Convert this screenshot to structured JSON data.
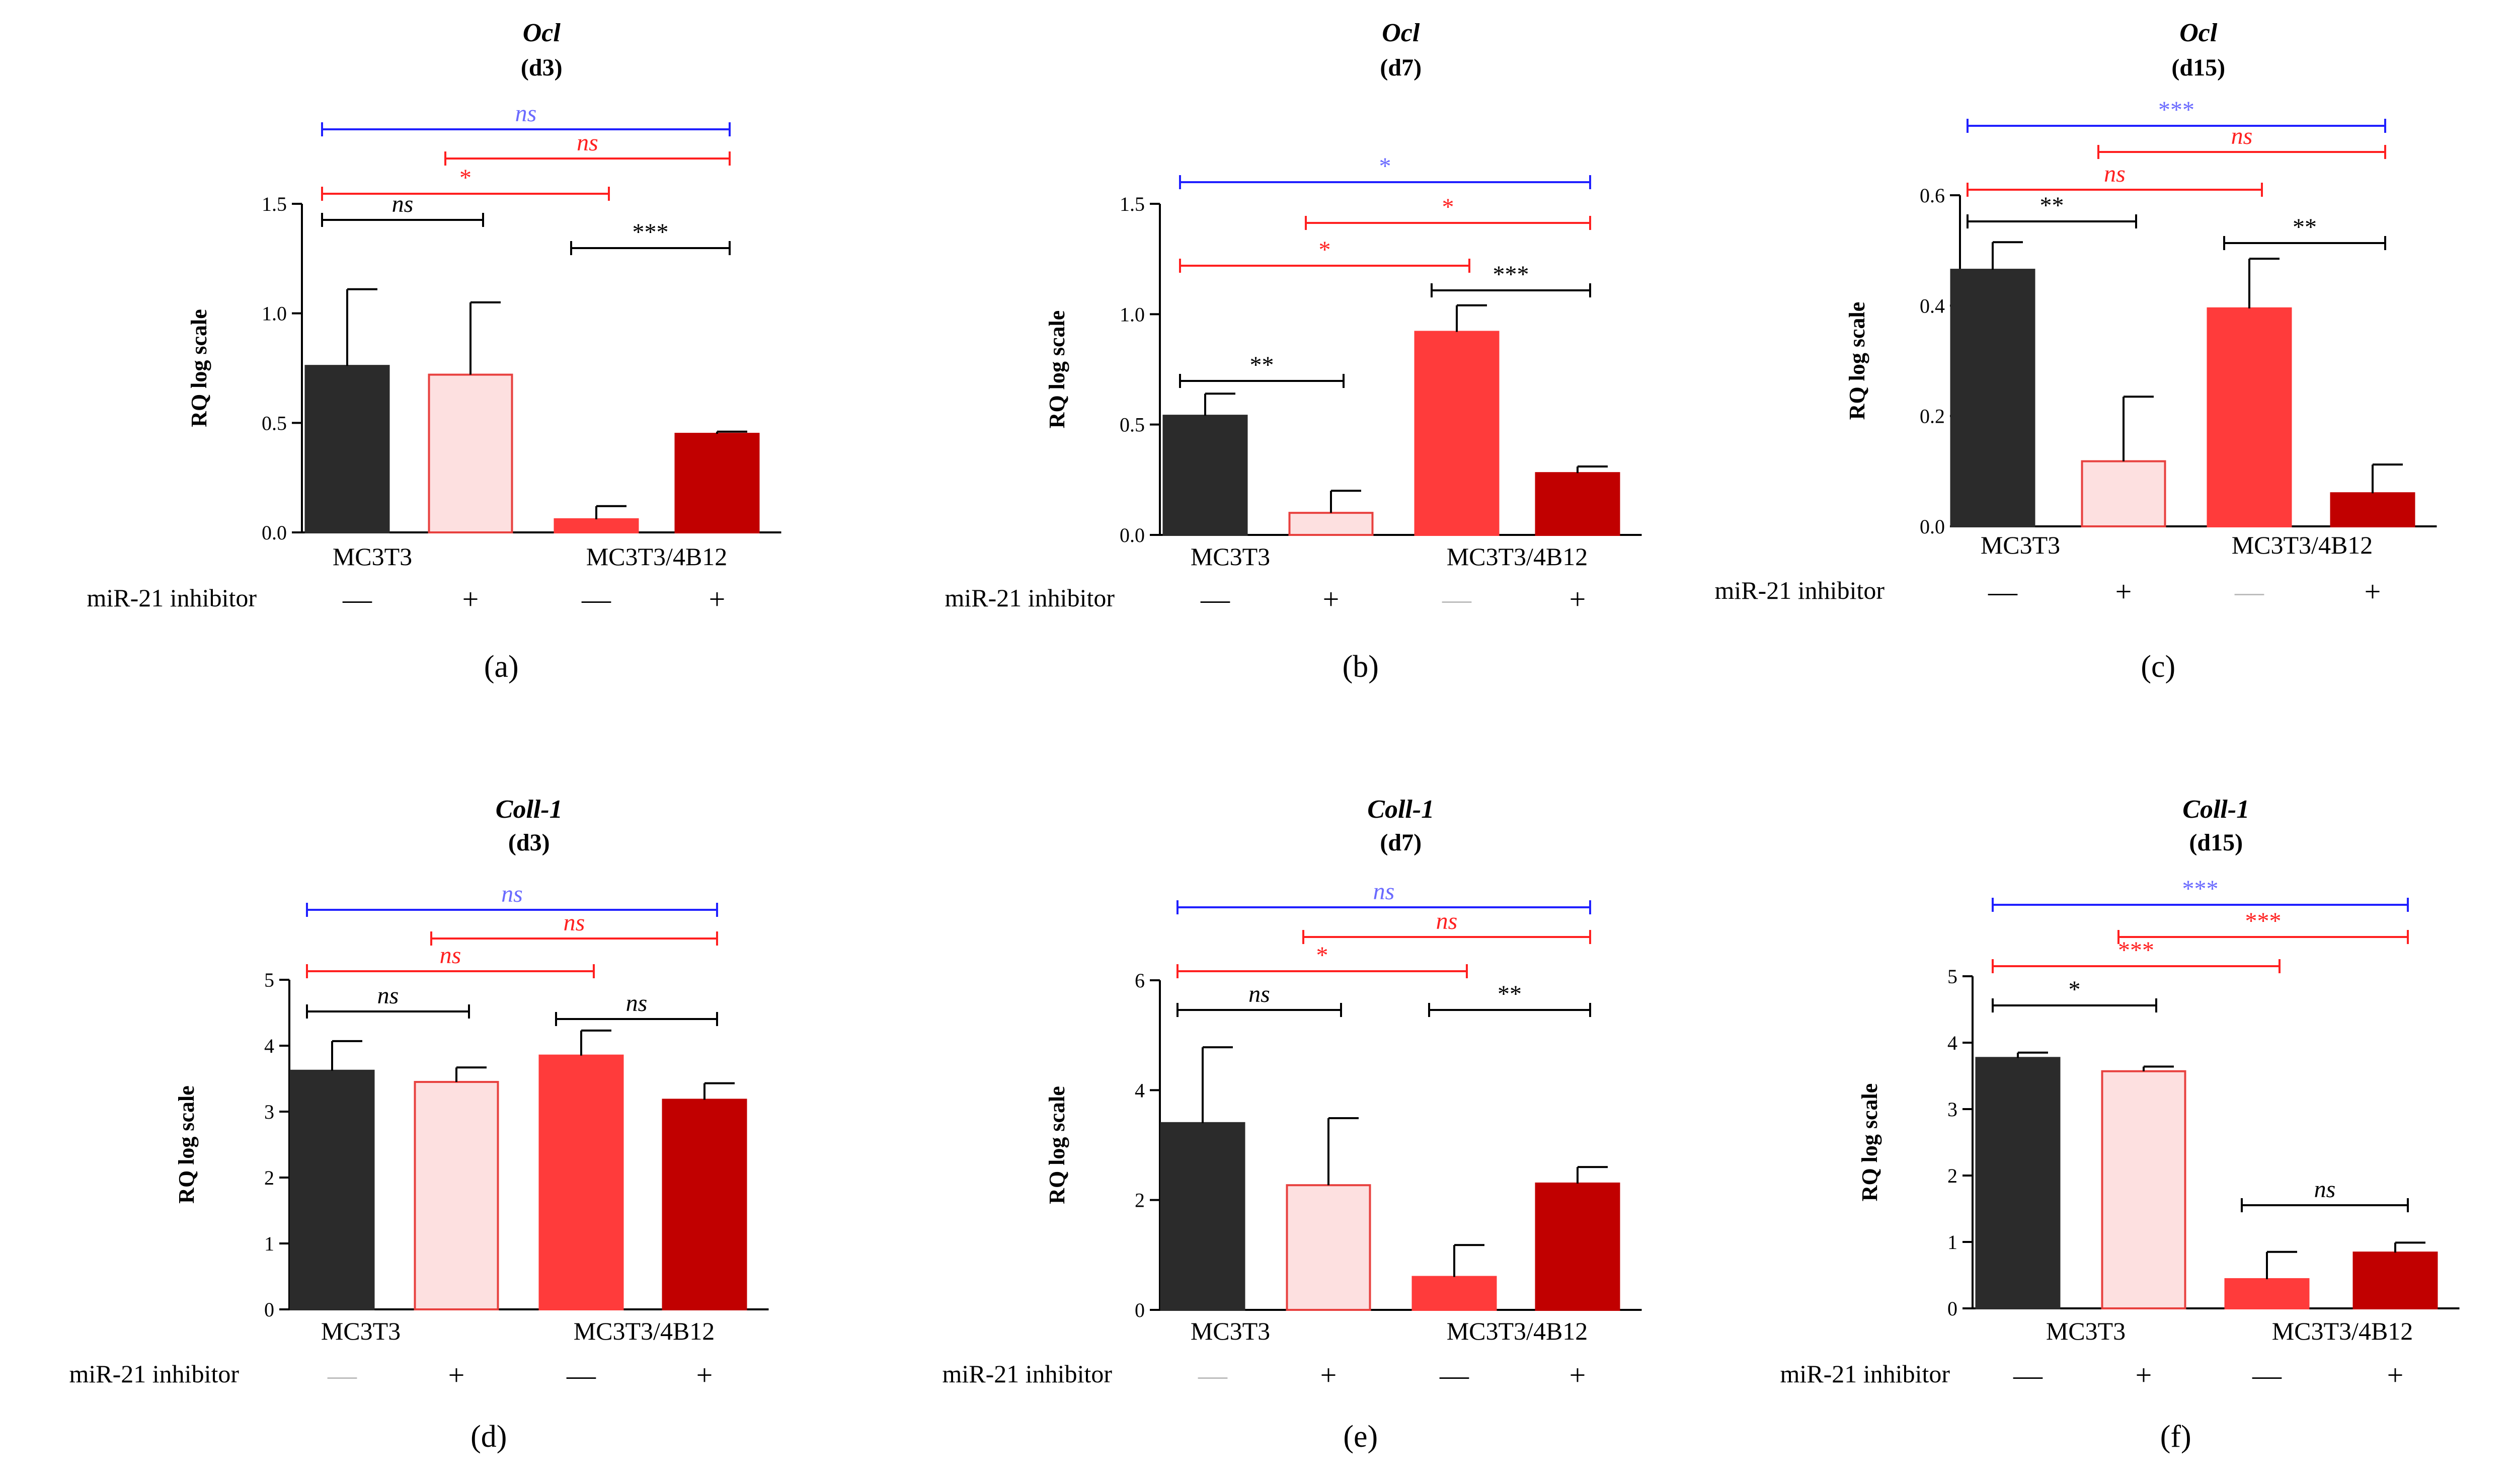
{
  "figure": {
    "group_label_row": "miR-21 inhibitor",
    "colors": {
      "mc3t3_ctrl": "#2b2b2b",
      "mc3t3_inh": "#fde0e0",
      "mc3t3_inh_edge": "#e8413f",
      "b12_ctrl": "#ff3b3b",
      "b12_inh": "#c10000",
      "axis": "#000000",
      "sig_black": "#000000",
      "sig_red": "#ff2020",
      "sig_blue": "#2020ff",
      "text_blue": "#6a6aff"
    }
  },
  "chart_data": [
    {
      "panel": "(a)",
      "type": "bar",
      "gene": "Ocl",
      "timepoint": "(d3)",
      "ylabel": "RQ log scale",
      "ylim": [
        0,
        1.5
      ],
      "yticks": [
        "0.0",
        "0.5",
        "1.0",
        "1.5"
      ],
      "categories": [
        "MC3T3",
        "MC3T3/4B12"
      ],
      "inhibitor_marks": [
        "—",
        "+",
        "—",
        "+"
      ],
      "series": [
        {
          "name": "MC3T3 —",
          "value": 0.76,
          "error": 0.35
        },
        {
          "name": "MC3T3 +",
          "value": 0.72,
          "error": 0.33
        },
        {
          "name": "MC3T3/4B12 —",
          "value": 0.06,
          "error": 0.06
        },
        {
          "name": "MC3T3/4B12 +",
          "value": 0.45,
          "error": 0.01
        }
      ],
      "significance": [
        {
          "from": 0,
          "to": 3,
          "label": "ns",
          "color": "blue",
          "italic": true
        },
        {
          "from": 1,
          "to": 3,
          "label": "ns",
          "color": "red",
          "italic": true
        },
        {
          "from": 0,
          "to": 2,
          "label": "*",
          "color": "red",
          "italic": false
        },
        {
          "from": 0,
          "to": 1,
          "label": "ns",
          "color": "black",
          "italic": true
        },
        {
          "from": 2,
          "to": 3,
          "label": "***",
          "color": "black",
          "italic": false
        }
      ]
    },
    {
      "panel": "(b)",
      "type": "bar",
      "gene": "Ocl",
      "timepoint": "(d7)",
      "ylabel": "RQ log scale",
      "ylim": [
        0,
        1.5
      ],
      "yticks": [
        "0.0",
        "0.5",
        "1.0",
        "1.5"
      ],
      "categories": [
        "MC3T3",
        "MC3T3/4B12"
      ],
      "inhibitor_marks": [
        "—",
        "+",
        "—",
        "+"
      ],
      "series": [
        {
          "name": "MC3T3 —",
          "value": 0.54,
          "error": 0.1
        },
        {
          "name": "MC3T3 +",
          "value": 0.1,
          "error": 0.1
        },
        {
          "name": "MC3T3/4B12 —",
          "value": 0.92,
          "error": 0.12
        },
        {
          "name": "MC3T3/4B12 +",
          "value": 0.28,
          "error": 0.03
        }
      ],
      "significance": [
        {
          "from": 0,
          "to": 3,
          "label": "*",
          "color": "blue",
          "italic": false
        },
        {
          "from": 1,
          "to": 3,
          "label": "*",
          "color": "red",
          "italic": false
        },
        {
          "from": 0,
          "to": 2,
          "label": "*",
          "color": "red",
          "italic": false
        },
        {
          "from": 2,
          "to": 3,
          "label": "***",
          "color": "black",
          "italic": false
        },
        {
          "from": 0,
          "to": 1,
          "label": "**",
          "color": "black",
          "italic": false
        }
      ]
    },
    {
      "panel": "(c)",
      "type": "bar",
      "gene": "Ocl",
      "timepoint": "(d15)",
      "ylabel": "RQ log scale",
      "ylim": [
        0,
        0.6
      ],
      "yticks": [
        "0.0",
        "0.2",
        "0.4",
        "0.6"
      ],
      "categories": [
        "MC3T3",
        "MC3T3/4B12"
      ],
      "inhibitor_marks": [
        "—",
        "+",
        "—",
        "+"
      ],
      "series": [
        {
          "name": "MC3T3 —",
          "value": 0.465,
          "error": 0.05
        },
        {
          "name": "MC3T3 +",
          "value": 0.118,
          "error": 0.117
        },
        {
          "name": "MC3T3/4B12 —",
          "value": 0.395,
          "error": 0.09
        },
        {
          "name": "MC3T3/4B12 +",
          "value": 0.06,
          "error": 0.052
        }
      ],
      "significance": [
        {
          "from": 0,
          "to": 3,
          "label": "***",
          "color": "blue",
          "italic": false
        },
        {
          "from": 1,
          "to": 3,
          "label": "ns",
          "color": "red",
          "italic": true
        },
        {
          "from": 0,
          "to": 2,
          "label": "ns",
          "color": "red",
          "italic": true
        },
        {
          "from": 0,
          "to": 1,
          "label": "**",
          "color": "black",
          "italic": false
        },
        {
          "from": 2,
          "to": 3,
          "label": "**",
          "color": "black",
          "italic": false
        }
      ]
    },
    {
      "panel": "(d)",
      "type": "bar",
      "gene": "Coll-1",
      "timepoint": "(d3)",
      "ylabel": "RQ log scale",
      "ylim": [
        0,
        5
      ],
      "yticks": [
        "0",
        "1",
        "2",
        "3",
        "4",
        "5"
      ],
      "categories": [
        "MC3T3",
        "MC3T3/4B12"
      ],
      "inhibitor_marks": [
        "—",
        "+",
        "—",
        "+"
      ],
      "series": [
        {
          "name": "MC3T3 —",
          "value": 3.62,
          "error": 0.45
        },
        {
          "name": "MC3T3 +",
          "value": 3.45,
          "error": 0.22
        },
        {
          "name": "MC3T3/4B12 —",
          "value": 3.85,
          "error": 0.38
        },
        {
          "name": "MC3T3/4B12 +",
          "value": 3.18,
          "error": 0.25
        }
      ],
      "significance": [
        {
          "from": 0,
          "to": 3,
          "label": "ns",
          "color": "blue",
          "italic": true
        },
        {
          "from": 1,
          "to": 3,
          "label": "ns",
          "color": "red",
          "italic": true
        },
        {
          "from": 0,
          "to": 2,
          "label": "ns",
          "color": "red",
          "italic": true
        },
        {
          "from": 0,
          "to": 1,
          "label": "ns",
          "color": "black",
          "italic": true
        },
        {
          "from": 2,
          "to": 3,
          "label": "ns",
          "color": "black",
          "italic": true
        }
      ]
    },
    {
      "panel": "(e)",
      "type": "bar",
      "gene": "Coll-1",
      "timepoint": "(d7)",
      "ylabel": "RQ log scale",
      "ylim": [
        0,
        6
      ],
      "yticks": [
        "0",
        "2",
        "4",
        "6"
      ],
      "categories": [
        "MC3T3",
        "MC3T3/4B12"
      ],
      "inhibitor_marks": [
        "—",
        "+",
        "—",
        "+"
      ],
      "series": [
        {
          "name": "MC3T3 —",
          "value": 3.4,
          "error": 1.38
        },
        {
          "name": "MC3T3 +",
          "value": 2.27,
          "error": 1.22
        },
        {
          "name": "MC3T3/4B12 —",
          "value": 0.6,
          "error": 0.58
        },
        {
          "name": "MC3T3/4B12 +",
          "value": 2.3,
          "error": 0.3
        }
      ],
      "significance": [
        {
          "from": 0,
          "to": 3,
          "label": "ns",
          "color": "blue",
          "italic": true
        },
        {
          "from": 1,
          "to": 3,
          "label": "ns",
          "color": "red",
          "italic": true
        },
        {
          "from": 0,
          "to": 2,
          "label": "*",
          "color": "red",
          "italic": false
        },
        {
          "from": 0,
          "to": 1,
          "label": "ns",
          "color": "black",
          "italic": true
        },
        {
          "from": 2,
          "to": 3,
          "label": "**",
          "color": "black",
          "italic": false
        }
      ]
    },
    {
      "panel": "(f)",
      "type": "bar",
      "gene": "Coll-1",
      "timepoint": "(d15)",
      "ylabel": "RQ log scale",
      "ylim": [
        0,
        5
      ],
      "yticks": [
        "0",
        "1",
        "2",
        "3",
        "4",
        "5"
      ],
      "categories": [
        "MC3T3",
        "MC3T3/4B12"
      ],
      "inhibitor_marks": [
        "—",
        "+",
        "—",
        "+"
      ],
      "series": [
        {
          "name": "MC3T3 —",
          "value": 3.77,
          "error": 0.08
        },
        {
          "name": "MC3T3 +",
          "value": 3.57,
          "error": 0.07
        },
        {
          "name": "MC3T3/4B12 —",
          "value": 0.44,
          "error": 0.41
        },
        {
          "name": "MC3T3/4B12 +",
          "value": 0.84,
          "error": 0.15
        }
      ],
      "significance": [
        {
          "from": 0,
          "to": 3,
          "label": "***",
          "color": "blue",
          "italic": false
        },
        {
          "from": 1,
          "to": 3,
          "label": "***",
          "color": "red",
          "italic": false
        },
        {
          "from": 0,
          "to": 2,
          "label": "***",
          "color": "red",
          "italic": false
        },
        {
          "from": 0,
          "to": 1,
          "label": "*",
          "color": "black",
          "italic": false
        },
        {
          "from": 2,
          "to": 3,
          "label": "ns",
          "color": "black",
          "italic": true
        }
      ]
    }
  ]
}
